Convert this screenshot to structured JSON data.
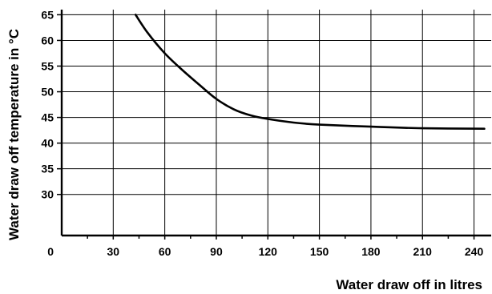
{
  "chart_data": {
    "type": "line",
    "xlabel": "Water draw off in litres",
    "ylabel": "Water draw off temperature in °C",
    "origin_label": "0",
    "xlim": [
      0,
      250
    ],
    "ylim": [
      22,
      66
    ],
    "x_ticks": [
      30,
      60,
      90,
      120,
      150,
      180,
      210,
      240
    ],
    "y_ticks": [
      30,
      35,
      40,
      45,
      50,
      55,
      60,
      65
    ],
    "grid": true,
    "series": [
      {
        "values": [
          {
            "x": 43,
            "y": 65
          },
          {
            "x": 50,
            "y": 61.5
          },
          {
            "x": 60,
            "y": 57.5
          },
          {
            "x": 70,
            "y": 54.3
          },
          {
            "x": 80,
            "y": 51.4
          },
          {
            "x": 90,
            "y": 48.6
          },
          {
            "x": 100,
            "y": 46.6
          },
          {
            "x": 110,
            "y": 45.4
          },
          {
            "x": 120,
            "y": 44.7
          },
          {
            "x": 135,
            "y": 44.0
          },
          {
            "x": 150,
            "y": 43.6
          },
          {
            "x": 180,
            "y": 43.2
          },
          {
            "x": 210,
            "y": 42.9
          },
          {
            "x": 246,
            "y": 42.8
          }
        ]
      }
    ]
  }
}
